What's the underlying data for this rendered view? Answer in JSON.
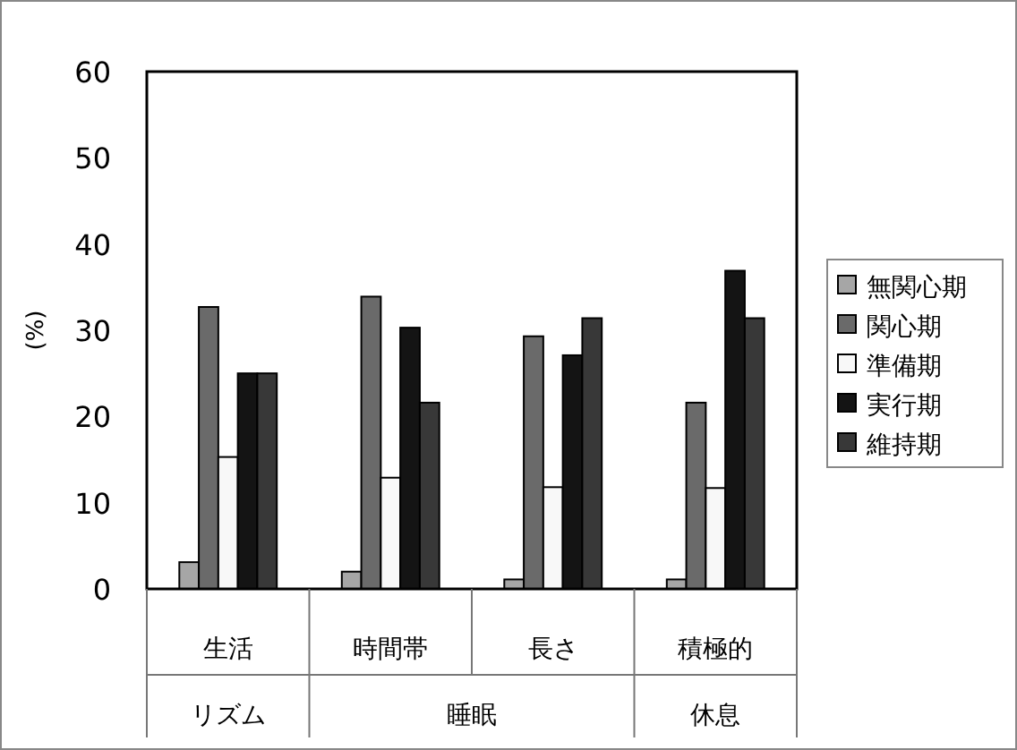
{
  "chart_data": {
    "type": "bar",
    "ylabel": "(%)",
    "categories": [
      "生活",
      "時間帯",
      "長さ",
      "積極的"
    ],
    "annotations": [
      "リズム",
      "睡眠",
      "休息"
    ],
    "series": [
      {
        "name": "無関心期",
        "color": "#a6a6a6",
        "values": [
          3.1,
          2.0,
          1.1,
          1.1
        ]
      },
      {
        "name": "関心期",
        "color": "#6a6a6a",
        "values": [
          32.7,
          33.9,
          29.3,
          21.6
        ]
      },
      {
        "name": "準備期",
        "color": "#f8f8f8",
        "values": [
          15.3,
          12.9,
          11.8,
          11.7
        ]
      },
      {
        "name": "実行期",
        "color": "#141414",
        "values": [
          25.0,
          30.3,
          27.1,
          36.9
        ]
      },
      {
        "name": "維持期",
        "color": "#383838",
        "values": [
          25.0,
          21.6,
          31.4,
          31.4
        ]
      }
    ],
    "ylim": [
      0,
      60
    ],
    "yticks": [
      0,
      10,
      20,
      30,
      40,
      50,
      60
    ],
    "grid": false,
    "legend": "right"
  }
}
